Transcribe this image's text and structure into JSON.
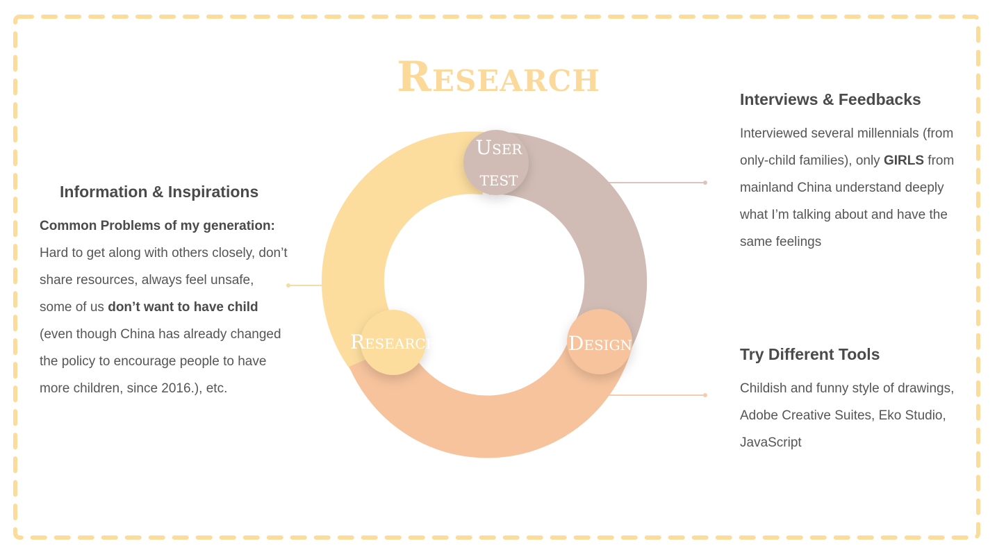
{
  "title": "Research",
  "colors": {
    "frame": "#fbdc9a",
    "research": "#fcdd9e",
    "user_test": "#d0bcb4",
    "design": "#f6c39d",
    "connector_left": "#f5dca4",
    "connector_right_top": "#dcc4bc",
    "connector_right_bottom": "#f3cdb0"
  },
  "cycle": {
    "stages": [
      {
        "id": "research",
        "label": "Research"
      },
      {
        "id": "user_test",
        "label_line1": "User",
        "label_line2": "test"
      },
      {
        "id": "design",
        "label": "Design"
      }
    ]
  },
  "left": {
    "heading": "Information & Inspirations",
    "lead_bold": "Common Problems of my generation:",
    "text_a": " Hard to get along with others closely, don’t share resources, always feel unsafe, some of us ",
    "bold_b": "don’t want to have child",
    "text_c": " (even though China has already changed the policy to encourage people to have more children, since 2016.), etc."
  },
  "right_top": {
    "heading": "Interviews & Feedbacks",
    "text_a": "Interviewed several millennials (from only-child families), only ",
    "bold_b": "GIRLS",
    "text_c": " from mainland China understand deeply what I’m talking about and have the same feelings"
  },
  "right_bottom": {
    "heading": "Try Different Tools",
    "text": "Childish and funny style of drawings, Adobe Creative Suites, Eko Studio, JavaScript"
  }
}
